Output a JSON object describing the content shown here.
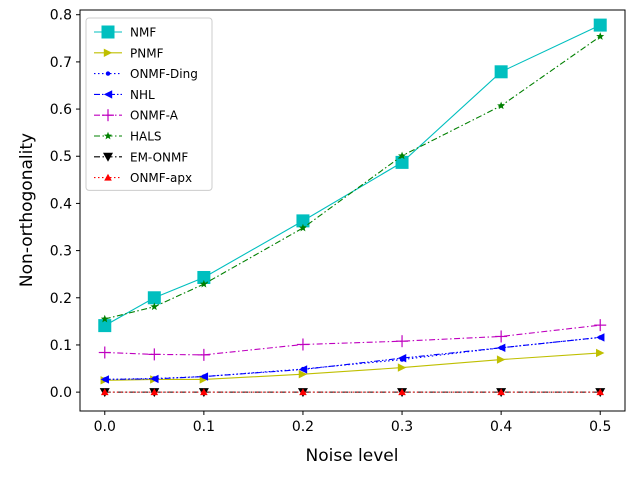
{
  "chart_data": {
    "type": "line",
    "title": "",
    "xlabel": "Noise level",
    "ylabel": "Non-orthogonality",
    "xlim": [
      -0.025,
      0.525
    ],
    "ylim": [
      -0.04,
      0.81
    ],
    "xticks": [
      0.0,
      0.1,
      0.2,
      0.3,
      0.4,
      0.5
    ],
    "xtick_labels": [
      "0.0",
      "0.1",
      "0.2",
      "0.3",
      "0.4",
      "0.5"
    ],
    "yticks": [
      0.0,
      0.1,
      0.2,
      0.3,
      0.4,
      0.5,
      0.6,
      0.7,
      0.8
    ],
    "ytick_labels": [
      "0.0",
      "0.1",
      "0.2",
      "0.3",
      "0.4",
      "0.5",
      "0.6",
      "0.7",
      "0.8"
    ],
    "grid": false,
    "legend_position": "top-left",
    "x": [
      0.0,
      0.05,
      0.1,
      0.2,
      0.3,
      0.4,
      0.5
    ],
    "series": [
      {
        "name": "NMF",
        "color": "#00bfbf",
        "marker": "square",
        "dash": "solid",
        "values": [
          0.141,
          0.2,
          0.243,
          0.363,
          0.487,
          0.679,
          0.778
        ]
      },
      {
        "name": "PNMF",
        "color": "#bfbf00",
        "marker": "triangle-right",
        "dash": "solid",
        "values": [
          0.025,
          0.027,
          0.027,
          0.038,
          0.052,
          0.069,
          0.083
        ]
      },
      {
        "name": "ONMF-Ding",
        "color": "#0000ff",
        "marker": "dot",
        "dash": "dotted",
        "values": [
          0.027,
          0.029,
          0.033,
          0.049,
          0.069,
          0.094,
          0.116
        ]
      },
      {
        "name": "NHL",
        "color": "#0000ff",
        "marker": "triangle-left",
        "dash": "dashdotdot",
        "values": [
          0.027,
          0.028,
          0.033,
          0.048,
          0.072,
          0.094,
          0.116
        ]
      },
      {
        "name": "ONMF-A",
        "color": "#bf00bf",
        "marker": "plus",
        "dash": "dashdot",
        "values": [
          0.084,
          0.08,
          0.079,
          0.101,
          0.108,
          0.118,
          0.142
        ]
      },
      {
        "name": "HALS",
        "color": "#008000",
        "marker": "star",
        "dash": "dashdot",
        "values": [
          0.155,
          0.181,
          0.229,
          0.348,
          0.501,
          0.607,
          0.754
        ]
      },
      {
        "name": "EM-ONMF",
        "color": "#000000",
        "marker": "triangle-down",
        "dash": "dashdot",
        "values": [
          0.0,
          0.0,
          0.0,
          0.0,
          0.0,
          0.0,
          0.0
        ]
      },
      {
        "name": "ONMF-apx",
        "color": "#ff0000",
        "marker": "triangle-up",
        "dash": "dotted",
        "values": [
          0.0,
          0.0,
          0.0,
          0.0,
          0.0,
          0.0,
          0.0
        ]
      }
    ]
  }
}
